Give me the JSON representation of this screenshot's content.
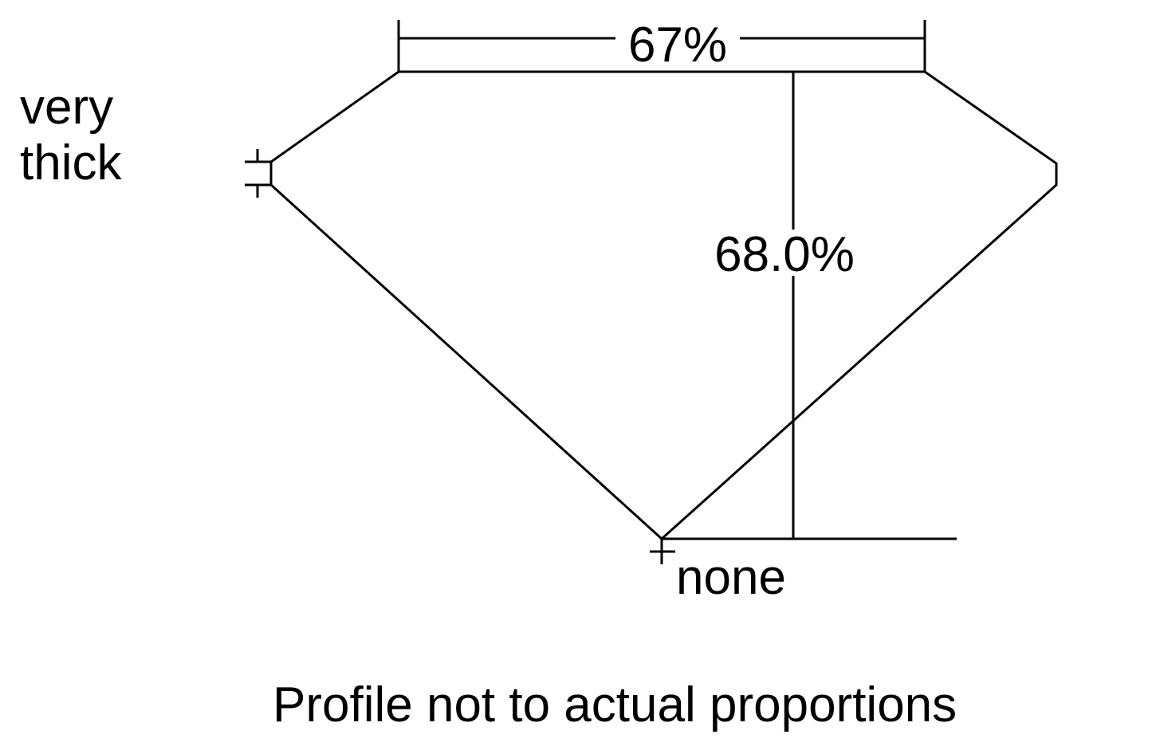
{
  "diagram": {
    "table_width": "67%",
    "total_depth": "68.0%",
    "girdle_label_line1": "very",
    "girdle_label_line2": "thick",
    "culet_label": "none",
    "caption": "Profile not to actual proportions",
    "line_color": "#000000",
    "background": "#ffffff"
  }
}
